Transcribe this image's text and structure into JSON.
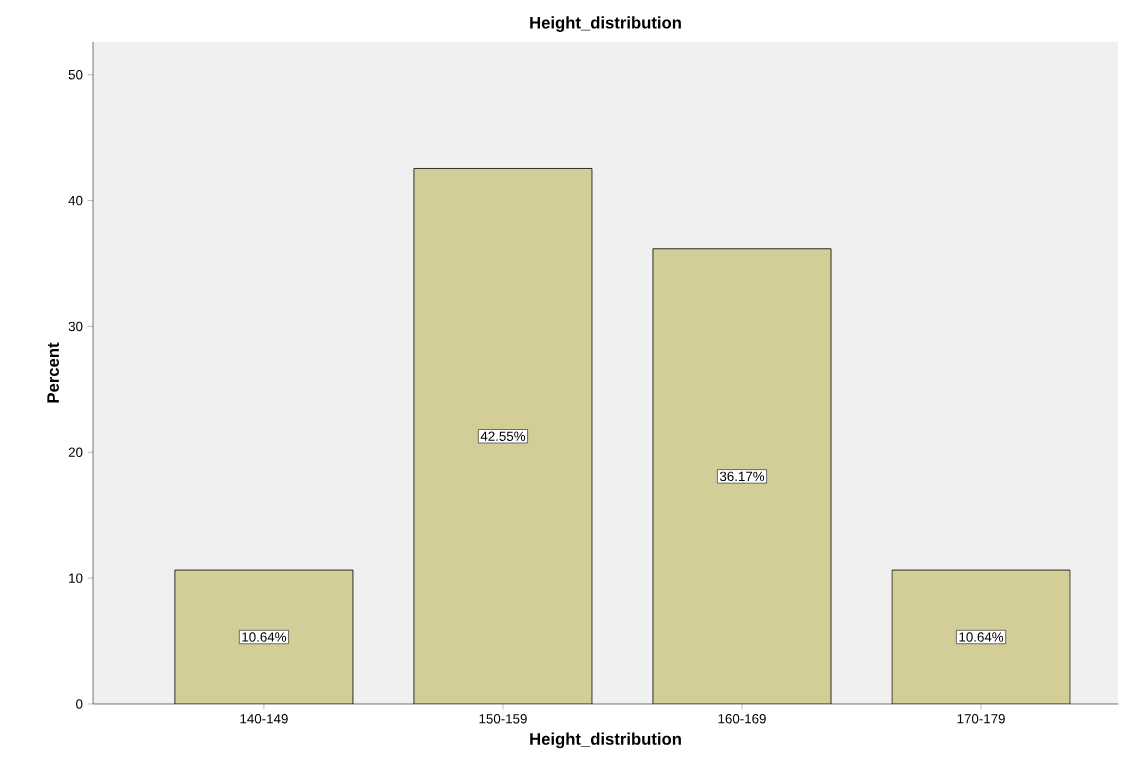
{
  "chart_data": {
    "type": "bar",
    "title": "Height_distribution",
    "xlabel": "Height_distribution",
    "ylabel": "Percent",
    "categories": [
      "140-149",
      "150-159",
      "160-169",
      "170-179"
    ],
    "values": [
      10.64,
      42.55,
      36.17,
      10.64
    ],
    "value_labels": [
      "10.64%",
      "42.55%",
      "36.17%",
      "10.64%"
    ],
    "color": "#d3ce97",
    "ylim": [
      0,
      52.6
    ],
    "yticks": [
      0,
      10,
      20,
      30,
      40,
      50
    ]
  }
}
